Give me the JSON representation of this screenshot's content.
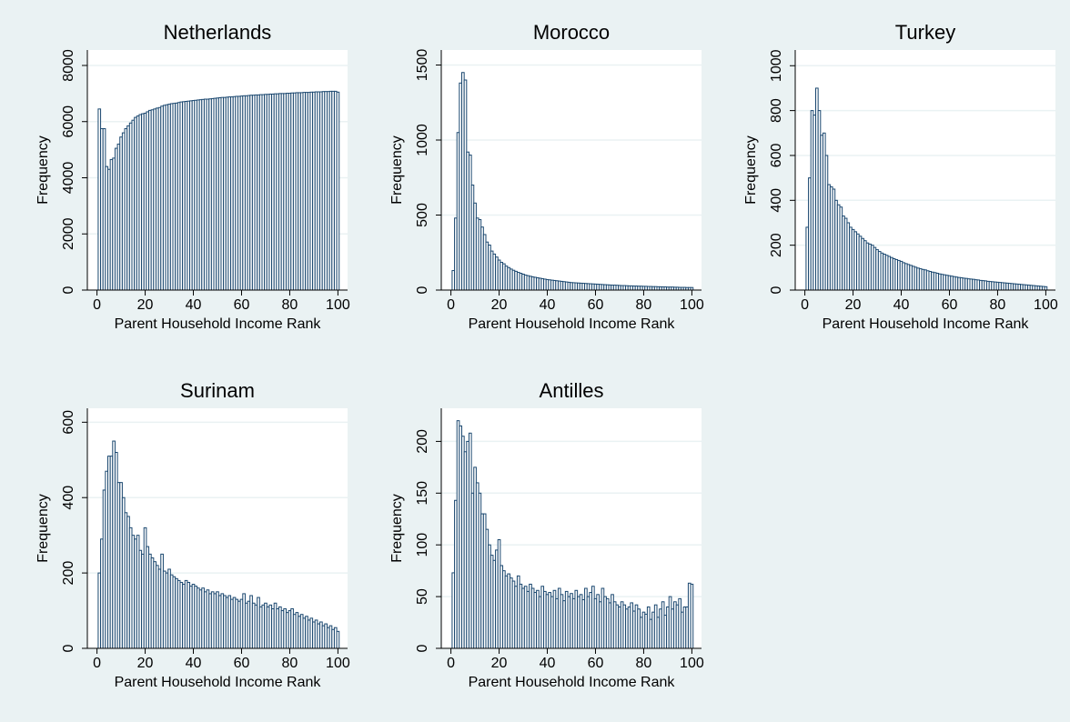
{
  "chart_data": [
    {
      "type": "histogram",
      "title": "Netherlands",
      "xlabel": "Parent Household Income Rank",
      "ylabel": "Frequency",
      "color": "#1a476f",
      "bins": [
        0.5,
        1.5,
        2.5,
        3.5,
        4.5,
        5.5,
        6.5,
        7.5,
        8.5,
        9.5,
        10.5,
        11.5,
        12.5,
        13.5,
        14.5,
        15.5,
        16.5,
        17.5,
        18.5,
        19.5,
        20.5,
        21.5,
        22.5,
        23.5,
        24.5,
        25.5,
        26.5,
        27.5,
        28.5,
        29.5,
        30.5,
        31.5,
        32.5,
        33.5,
        34.5,
        35.5,
        36.5,
        37.5,
        38.5,
        39.5,
        40.5,
        41.5,
        42.5,
        43.5,
        44.5,
        45.5,
        46.5,
        47.5,
        48.5,
        49.5,
        50.5,
        51.5,
        52.5,
        53.5,
        54.5,
        55.5,
        56.5,
        57.5,
        58.5,
        59.5,
        60.5,
        61.5,
        62.5,
        63.5,
        64.5,
        65.5,
        66.5,
        67.5,
        68.5,
        69.5,
        70.5,
        71.5,
        72.5,
        73.5,
        74.5,
        75.5,
        76.5,
        77.5,
        78.5,
        79.5,
        80.5,
        81.5,
        82.5,
        83.5,
        84.5,
        85.5,
        86.5,
        87.5,
        88.5,
        89.5,
        90.5,
        91.5,
        92.5,
        93.5,
        94.5,
        95.5,
        96.5,
        97.5,
        98.5,
        99.5,
        100.5
      ],
      "values": [
        6450,
        5750,
        5750,
        4400,
        4300,
        4650,
        4700,
        5050,
        5200,
        5450,
        5600,
        5750,
        5850,
        5950,
        6050,
        6150,
        6200,
        6250,
        6280,
        6300,
        6350,
        6400,
        6420,
        6450,
        6480,
        6500,
        6550,
        6580,
        6600,
        6620,
        6640,
        6650,
        6660,
        6680,
        6700,
        6710,
        6720,
        6730,
        6740,
        6750,
        6760,
        6770,
        6780,
        6790,
        6800,
        6800,
        6810,
        6820,
        6830,
        6840,
        6850,
        6860,
        6860,
        6870,
        6880,
        6880,
        6890,
        6900,
        6900,
        6910,
        6920,
        6920,
        6930,
        6940,
        6940,
        6950,
        6950,
        6960,
        6960,
        6970,
        6970,
        6980,
        6980,
        6990,
        6990,
        7000,
        7000,
        7000,
        7010,
        7010,
        7020,
        7020,
        7030,
        7030,
        7030,
        7040,
        7040,
        7040,
        7050,
        7050,
        7060,
        7060,
        7060,
        7070,
        7070,
        7070,
        7080,
        7080,
        7080,
        7050
      ],
      "xlim": [
        -4,
        104
      ],
      "xticks": [
        0,
        20,
        40,
        60,
        80,
        100
      ],
      "ylim": [
        0,
        8550
      ],
      "yticks": [
        0,
        2000,
        4000,
        6000,
        8000
      ],
      "grid": true
    },
    {
      "type": "histogram",
      "title": "Morocco",
      "xlabel": "Parent Household Income Rank",
      "ylabel": "Frequency",
      "color": "#1a476f",
      "bins": [
        0.5,
        1.5,
        2.5,
        3.5,
        4.5,
        5.5,
        6.5,
        7.5,
        8.5,
        9.5,
        10.5,
        11.5,
        12.5,
        13.5,
        14.5,
        15.5,
        16.5,
        17.5,
        18.5,
        19.5,
        20.5,
        21.5,
        22.5,
        23.5,
        24.5,
        25.5,
        26.5,
        27.5,
        28.5,
        29.5,
        30.5,
        31.5,
        32.5,
        33.5,
        34.5,
        35.5,
        36.5,
        37.5,
        38.5,
        39.5,
        40.5,
        41.5,
        42.5,
        43.5,
        44.5,
        45.5,
        46.5,
        47.5,
        48.5,
        49.5,
        50.5,
        51.5,
        52.5,
        53.5,
        54.5,
        55.5,
        56.5,
        57.5,
        58.5,
        59.5,
        60.5,
        61.5,
        62.5,
        63.5,
        64.5,
        65.5,
        66.5,
        67.5,
        68.5,
        69.5,
        70.5,
        71.5,
        72.5,
        73.5,
        74.5,
        75.5,
        76.5,
        77.5,
        78.5,
        79.5,
        80.5,
        81.5,
        82.5,
        83.5,
        84.5,
        85.5,
        86.5,
        87.5,
        88.5,
        89.5,
        90.5,
        91.5,
        92.5,
        93.5,
        94.5,
        95.5,
        96.5,
        97.5,
        98.5,
        99.5,
        100.5
      ],
      "values": [
        130,
        480,
        1050,
        1380,
        1450,
        1400,
        920,
        900,
        700,
        580,
        480,
        470,
        420,
        370,
        320,
        300,
        260,
        240,
        220,
        200,
        185,
        175,
        160,
        150,
        140,
        132,
        125,
        118,
        112,
        106,
        100,
        96,
        92,
        88,
        85,
        82,
        79,
        76,
        73,
        70,
        68,
        66,
        64,
        62,
        60,
        58,
        56,
        54,
        52,
        50,
        49,
        48,
        47,
        46,
        45,
        44,
        43,
        42,
        41,
        40,
        39,
        38,
        37,
        36,
        35,
        34,
        33,
        33,
        32,
        31,
        30,
        30,
        29,
        28,
        28,
        27,
        27,
        26,
        26,
        25,
        25,
        24,
        24,
        23,
        23,
        22,
        22,
        21,
        21,
        20,
        20,
        20,
        19,
        19,
        18,
        18,
        18,
        17,
        17,
        17
      ],
      "xlim": [
        -4,
        104
      ],
      "xticks": [
        0,
        20,
        40,
        60,
        80,
        100
      ],
      "ylim": [
        0,
        1600
      ],
      "yticks": [
        0,
        500,
        1000,
        1500
      ],
      "grid": true
    },
    {
      "type": "histogram",
      "title": "Turkey",
      "xlabel": "Parent Household Income Rank",
      "ylabel": "Frequency",
      "color": "#1a476f",
      "bins": [
        0.5,
        1.5,
        2.5,
        3.5,
        4.5,
        5.5,
        6.5,
        7.5,
        8.5,
        9.5,
        10.5,
        11.5,
        12.5,
        13.5,
        14.5,
        15.5,
        16.5,
        17.5,
        18.5,
        19.5,
        20.5,
        21.5,
        22.5,
        23.5,
        24.5,
        25.5,
        26.5,
        27.5,
        28.5,
        29.5,
        30.5,
        31.5,
        32.5,
        33.5,
        34.5,
        35.5,
        36.5,
        37.5,
        38.5,
        39.5,
        40.5,
        41.5,
        42.5,
        43.5,
        44.5,
        45.5,
        46.5,
        47.5,
        48.5,
        49.5,
        50.5,
        51.5,
        52.5,
        53.5,
        54.5,
        55.5,
        56.5,
        57.5,
        58.5,
        59.5,
        60.5,
        61.5,
        62.5,
        63.5,
        64.5,
        65.5,
        66.5,
        67.5,
        68.5,
        69.5,
        70.5,
        71.5,
        72.5,
        73.5,
        74.5,
        75.5,
        76.5,
        77.5,
        78.5,
        79.5,
        80.5,
        81.5,
        82.5,
        83.5,
        84.5,
        85.5,
        86.5,
        87.5,
        88.5,
        89.5,
        90.5,
        91.5,
        92.5,
        93.5,
        94.5,
        95.5,
        96.5,
        97.5,
        98.5,
        99.5,
        100.5
      ],
      "values": [
        280,
        500,
        800,
        780,
        900,
        800,
        690,
        700,
        600,
        470,
        460,
        450,
        400,
        380,
        370,
        330,
        320,
        300,
        280,
        270,
        260,
        250,
        240,
        230,
        220,
        210,
        205,
        200,
        190,
        180,
        172,
        165,
        160,
        155,
        150,
        145,
        140,
        136,
        132,
        128,
        122,
        118,
        114,
        110,
        106,
        102,
        98,
        95,
        92,
        90,
        86,
        83,
        80,
        78,
        75,
        72,
        70,
        68,
        66,
        64,
        62,
        60,
        58,
        56,
        55,
        53,
        52,
        50,
        49,
        48,
        46,
        45,
        43,
        42,
        41,
        39,
        38,
        37,
        36,
        35,
        34,
        33,
        32,
        31,
        30,
        29,
        28,
        27,
        26,
        25,
        24,
        23,
        22,
        21,
        20,
        19,
        18,
        17,
        16,
        15
      ],
      "xlim": [
        -4,
        104
      ],
      "xticks": [
        0,
        20,
        40,
        60,
        80,
        100
      ],
      "ylim": [
        0,
        1070
      ],
      "yticks": [
        0,
        200,
        400,
        600,
        800,
        1000
      ],
      "grid": true
    },
    {
      "type": "histogram",
      "title": "Surinam",
      "xlabel": "Parent Household Income Rank",
      "ylabel": "Frequency",
      "color": "#1a476f",
      "bins": [
        0.5,
        1.5,
        2.5,
        3.5,
        4.5,
        5.5,
        6.5,
        7.5,
        8.5,
        9.5,
        10.5,
        11.5,
        12.5,
        13.5,
        14.5,
        15.5,
        16.5,
        17.5,
        18.5,
        19.5,
        20.5,
        21.5,
        22.5,
        23.5,
        24.5,
        25.5,
        26.5,
        27.5,
        28.5,
        29.5,
        30.5,
        31.5,
        32.5,
        33.5,
        34.5,
        35.5,
        36.5,
        37.5,
        38.5,
        39.5,
        40.5,
        41.5,
        42.5,
        43.5,
        44.5,
        45.5,
        46.5,
        47.5,
        48.5,
        49.5,
        50.5,
        51.5,
        52.5,
        53.5,
        54.5,
        55.5,
        56.5,
        57.5,
        58.5,
        59.5,
        60.5,
        61.5,
        62.5,
        63.5,
        64.5,
        65.5,
        66.5,
        67.5,
        68.5,
        69.5,
        70.5,
        71.5,
        72.5,
        73.5,
        74.5,
        75.5,
        76.5,
        77.5,
        78.5,
        79.5,
        80.5,
        81.5,
        82.5,
        83.5,
        84.5,
        85.5,
        86.5,
        87.5,
        88.5,
        89.5,
        90.5,
        91.5,
        92.5,
        93.5,
        94.5,
        95.5,
        96.5,
        97.5,
        98.5,
        99.5,
        100.5
      ],
      "values": [
        200,
        290,
        420,
        470,
        510,
        510,
        550,
        520,
        440,
        440,
        400,
        360,
        350,
        320,
        300,
        290,
        300,
        260,
        250,
        320,
        270,
        250,
        240,
        230,
        220,
        210,
        250,
        205,
        200,
        210,
        195,
        190,
        185,
        180,
        175,
        170,
        180,
        175,
        165,
        170,
        165,
        160,
        155,
        160,
        150,
        155,
        145,
        150,
        145,
        150,
        140,
        145,
        140,
        135,
        140,
        130,
        135,
        130,
        125,
        130,
        145,
        120,
        125,
        140,
        120,
        115,
        135,
        110,
        115,
        120,
        110,
        115,
        105,
        120,
        105,
        110,
        100,
        105,
        95,
        100,
        105,
        90,
        95,
        85,
        90,
        80,
        85,
        75,
        80,
        70,
        75,
        65,
        70,
        60,
        65,
        55,
        60,
        50,
        55,
        45
      ],
      "xlim": [
        -4,
        104
      ],
      "xticks": [
        0,
        20,
        40,
        60,
        80,
        100
      ],
      "ylim": [
        0,
        637
      ],
      "yticks": [
        0,
        200,
        400,
        600
      ],
      "grid": true
    },
    {
      "type": "histogram",
      "title": "Antilles",
      "xlabel": "Parent Household Income Rank",
      "ylabel": "Frequency",
      "color": "#1a476f",
      "bins": [
        0.5,
        1.5,
        2.5,
        3.5,
        4.5,
        5.5,
        6.5,
        7.5,
        8.5,
        9.5,
        10.5,
        11.5,
        12.5,
        13.5,
        14.5,
        15.5,
        16.5,
        17.5,
        18.5,
        19.5,
        20.5,
        21.5,
        22.5,
        23.5,
        24.5,
        25.5,
        26.5,
        27.5,
        28.5,
        29.5,
        30.5,
        31.5,
        32.5,
        33.5,
        34.5,
        35.5,
        36.5,
        37.5,
        38.5,
        39.5,
        40.5,
        41.5,
        42.5,
        43.5,
        44.5,
        45.5,
        46.5,
        47.5,
        48.5,
        49.5,
        50.5,
        51.5,
        52.5,
        53.5,
        54.5,
        55.5,
        56.5,
        57.5,
        58.5,
        59.5,
        60.5,
        61.5,
        62.5,
        63.5,
        64.5,
        65.5,
        66.5,
        67.5,
        68.5,
        69.5,
        70.5,
        71.5,
        72.5,
        73.5,
        74.5,
        75.5,
        76.5,
        77.5,
        78.5,
        79.5,
        80.5,
        81.5,
        82.5,
        83.5,
        84.5,
        85.5,
        86.5,
        87.5,
        88.5,
        89.5,
        90.5,
        91.5,
        92.5,
        93.5,
        94.5,
        95.5,
        96.5,
        97.5,
        98.5,
        99.5,
        100.5
      ],
      "values": [
        73,
        143,
        220,
        215,
        205,
        190,
        200,
        208,
        150,
        175,
        160,
        150,
        130,
        130,
        115,
        100,
        90,
        85,
        95,
        105,
        80,
        75,
        70,
        72,
        68,
        65,
        60,
        70,
        62,
        58,
        60,
        55,
        62,
        58,
        54,
        56,
        50,
        60,
        55,
        52,
        54,
        50,
        56,
        48,
        58,
        52,
        46,
        55,
        50,
        53,
        48,
        56,
        50,
        52,
        47,
        58,
        50,
        54,
        60,
        48,
        52,
        45,
        58,
        50,
        48,
        44,
        52,
        45,
        42,
        40,
        45,
        42,
        38,
        40,
        44,
        36,
        42,
        38,
        30,
        35,
        33,
        40,
        28,
        35,
        42,
        30,
        38,
        45,
        32,
        40,
        50,
        38,
        45,
        42,
        48,
        35,
        40,
        40,
        63,
        62
      ],
      "xlim": [
        -4,
        104
      ],
      "xticks": [
        0,
        20,
        40,
        60,
        80,
        100
      ],
      "ylim": [
        0,
        232
      ],
      "yticks": [
        0,
        50,
        100,
        150,
        200
      ],
      "grid": true
    }
  ]
}
